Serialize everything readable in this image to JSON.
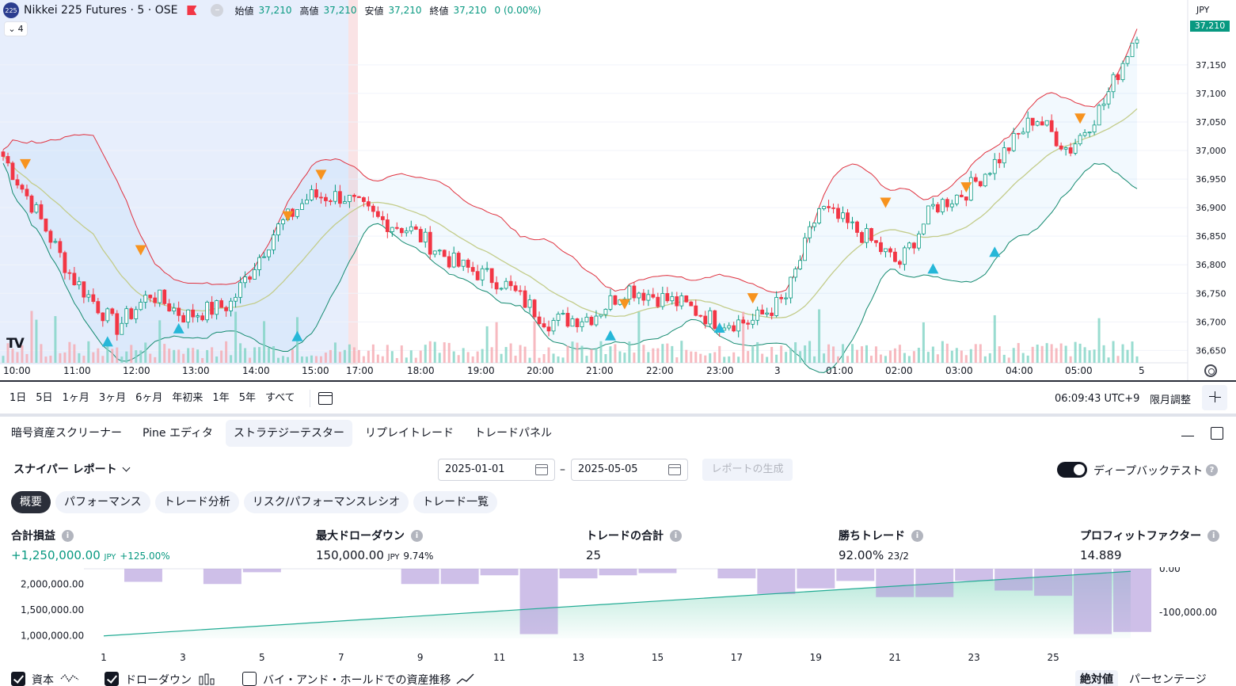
{
  "symbol": {
    "logo": "225",
    "title": "Nikkei 225 Futures · 5 · OSE",
    "collapse_count": "4",
    "ohlc": [
      {
        "label": "始値",
        "value": "37,210"
      },
      {
        "label": "高値",
        "value": "37,210"
      },
      {
        "label": "安値",
        "value": "37,210"
      },
      {
        "label": "終値",
        "value": "37,210"
      }
    ],
    "change": "0 (0.00%)"
  },
  "price_axis": {
    "currency": "JPY",
    "last_price": "37,210",
    "ticks": [
      "37,150",
      "37,100",
      "37,050",
      "37,000",
      "36,950",
      "36,900",
      "36,850",
      "36,800",
      "36,750",
      "36,700",
      "36,650"
    ]
  },
  "time_axis": {
    "labels": [
      "10:00",
      "11:00",
      "12:00",
      "13:00",
      "14:00",
      "15:00",
      "17:00",
      "18:00",
      "19:00",
      "20:00",
      "21:00",
      "22:00",
      "23:00",
      "3",
      "01:00",
      "02:00",
      "03:00",
      "04:00",
      "05:00",
      "5"
    ]
  },
  "range_bar": {
    "buttons": [
      "1日",
      "5日",
      "1ヶ月",
      "3ヶ月",
      "6ヶ月",
      "年初来",
      "1年",
      "5年",
      "すべて"
    ],
    "clock": "06:09:43 UTC+9",
    "adjust": "限月調整"
  },
  "panel": {
    "tabs": [
      "暗号資産スクリーナー",
      "Pine エディタ",
      "ストラテジーテスター",
      "リプレイトレード",
      "トレードパネル"
    ],
    "active_tab": 2,
    "report_title": "スナイパー レポート",
    "date_from": "2025-01-01",
    "date_to": "2025-05-05",
    "date_sep": "–",
    "generate_label": "レポートの生成",
    "deep_backtest_label": "ディープバックテスト",
    "sub_tabs": [
      "概要",
      "パフォーマンス",
      "トレード分析",
      "リスク/パフォーマンスレシオ",
      "トレード一覧"
    ],
    "metrics": [
      {
        "label": "合計損益",
        "value": "+1,250,000.00",
        "unit": "JPY",
        "sub": "+125.00%"
      },
      {
        "label": "最大ドローダウン",
        "value": "150,000.00",
        "unit": "JPY",
        "sub": "9.74%"
      },
      {
        "label": "トレードの合計",
        "value": "25",
        "unit": "",
        "sub": ""
      },
      {
        "label": "勝ちトレード",
        "value": "92.00%",
        "unit": "",
        "sub": "23/2"
      },
      {
        "label": "プロフィットファクター",
        "value": "14.889",
        "unit": "",
        "sub": ""
      }
    ],
    "legend": {
      "equity": "資本",
      "drawdown": "ドローダウン",
      "buy_hold": "バイ・アンド・ホールドでの資産推移",
      "absolute": "絶対値",
      "percentage": "パーセンテージ"
    }
  },
  "chart_data": [
    {
      "type": "candlestick",
      "title": "Nikkei 225 Futures · 5 · OSE",
      "ylim": [
        36620,
        37240
      ],
      "indicators": [
        "Bollinger Bands (upper red, basis olive, lower teal)",
        "buy markers (teal up-triangles)",
        "sell markers (orange down-triangles)",
        "volume bars"
      ],
      "price_keypoints": [
        {
          "t": 0.0,
          "p": 36990
        },
        {
          "t": 0.03,
          "p": 36890
        },
        {
          "t": 0.06,
          "p": 36780
        },
        {
          "t": 0.1,
          "p": 36690
        },
        {
          "t": 0.13,
          "p": 36750
        },
        {
          "t": 0.16,
          "p": 36710
        },
        {
          "t": 0.2,
          "p": 36730
        },
        {
          "t": 0.24,
          "p": 36860
        },
        {
          "t": 0.27,
          "p": 36920
        },
        {
          "t": 0.3,
          "p": 36920
        },
        {
          "t": 0.33,
          "p": 36880
        },
        {
          "t": 0.36,
          "p": 36860
        },
        {
          "t": 0.4,
          "p": 36800
        },
        {
          "t": 0.44,
          "p": 36770
        },
        {
          "t": 0.48,
          "p": 36700
        },
        {
          "t": 0.52,
          "p": 36710
        },
        {
          "t": 0.55,
          "p": 36760
        },
        {
          "t": 0.6,
          "p": 36730
        },
        {
          "t": 0.63,
          "p": 36700
        },
        {
          "t": 0.66,
          "p": 36700
        },
        {
          "t": 0.69,
          "p": 36740
        },
        {
          "t": 0.72,
          "p": 36900
        },
        {
          "t": 0.76,
          "p": 36850
        },
        {
          "t": 0.79,
          "p": 36800
        },
        {
          "t": 0.82,
          "p": 36900
        },
        {
          "t": 0.85,
          "p": 36930
        },
        {
          "t": 0.88,
          "p": 36990
        },
        {
          "t": 0.91,
          "p": 37060
        },
        {
          "t": 0.94,
          "p": 37000
        },
        {
          "t": 0.97,
          "p": 37080
        },
        {
          "t": 1.0,
          "p": 37210
        }
      ],
      "buy_signals_t": [
        0.09,
        0.155,
        0.26,
        0.535,
        0.63,
        0.82,
        0.875
      ],
      "sell_signals_t": [
        0.0,
        0.12,
        0.25,
        0.28,
        0.55,
        0.66,
        0.78,
        0.85,
        0.95
      ]
    },
    {
      "type": "bar",
      "title": "Strategy report",
      "categories": [
        1,
        2,
        3,
        4,
        5,
        6,
        7,
        8,
        9,
        10,
        11,
        12,
        13,
        14,
        15,
        16,
        17,
        18,
        19,
        20,
        21,
        22,
        23,
        24,
        25,
        26,
        27
      ],
      "x_ticks": [
        1,
        3,
        5,
        7,
        9,
        11,
        13,
        15,
        17,
        19,
        21,
        23,
        25
      ],
      "equity_y_ticks": [
        "2,000,000.00",
        "1,500,000.00",
        "1,000,000.00"
      ],
      "drawdown_y_ticks": [
        "0.00",
        "-100,000.00"
      ],
      "equity_ylim": [
        950000,
        2300000
      ],
      "drawdown_ylim": [
        -160000,
        0
      ],
      "equity_start": 1000000,
      "equity_end": 2250000,
      "drawdown": [
        0,
        -30000,
        0,
        -35000,
        -8000,
        0,
        0,
        0,
        -35000,
        -35000,
        -15000,
        -150000,
        -22000,
        -15000,
        -10000,
        0,
        -22000,
        -58000,
        -45000,
        -28000,
        -65000,
        -65000,
        -28000,
        -50000,
        -62000,
        -150000,
        -145000
      ]
    }
  ]
}
